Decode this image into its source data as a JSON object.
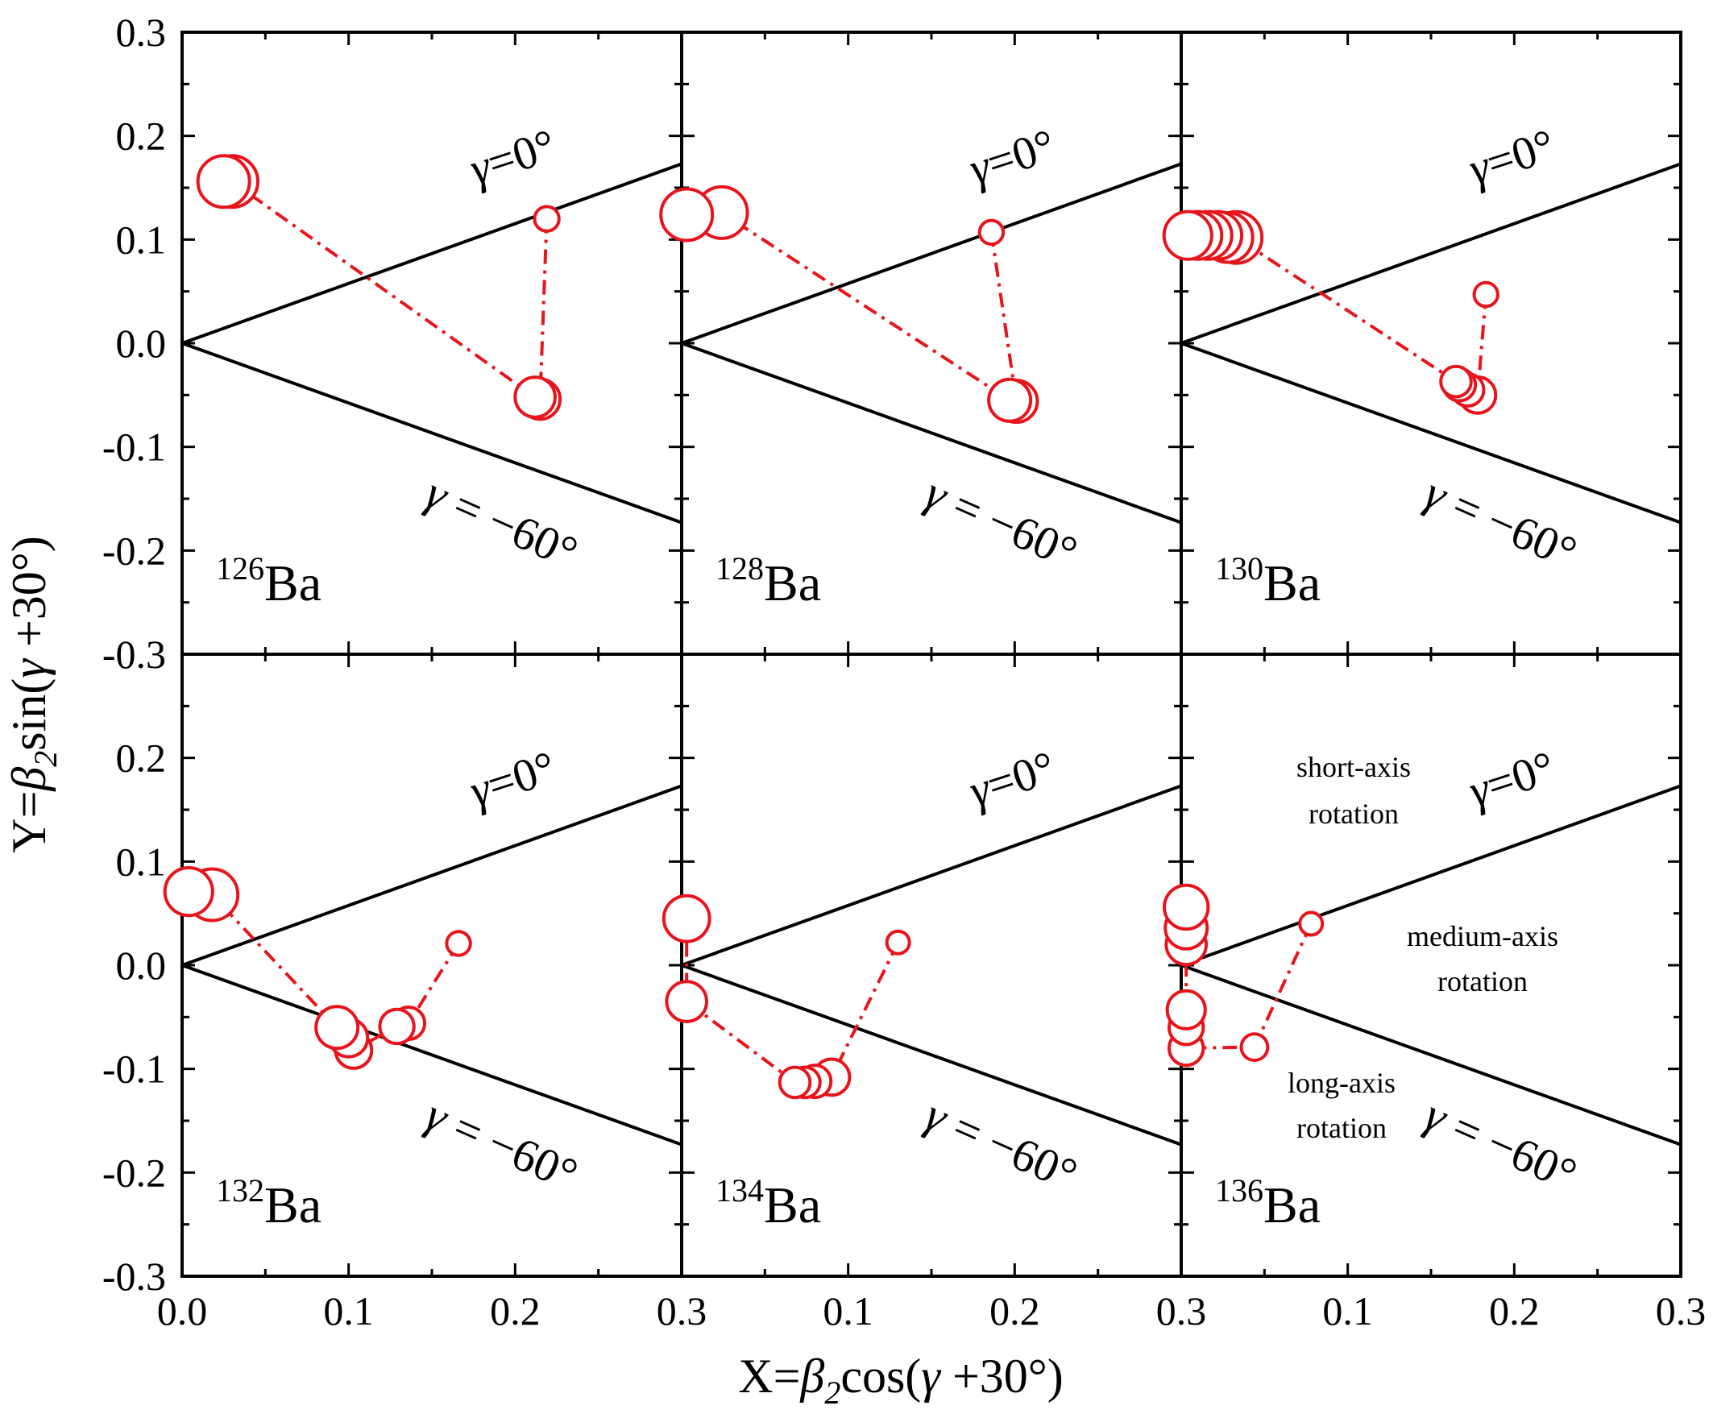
{
  "axes": {
    "x_title": {
      "prefix": "X=",
      "beta": "β",
      "sub": "2",
      "rest": "cos(",
      "gamma": "γ",
      "tail": " +30°)"
    },
    "y_title": {
      "prefix": "Y=",
      "beta": "β",
      "sub": "2",
      "rest": "sin(",
      "gamma": "γ",
      "tail": " +30°)"
    },
    "x_ticks": [
      {
        "value": 0.0,
        "label": "0.0"
      },
      {
        "value": 0.1,
        "label": "0.1"
      },
      {
        "value": 0.2,
        "label": "0.2"
      },
      {
        "value": 0.3,
        "label": "0.3"
      }
    ],
    "x_ticks_inner": [
      {
        "value": 0.1,
        "label": "0.1"
      },
      {
        "value": 0.2,
        "label": "0.2"
      },
      {
        "value": 0.3,
        "label": "0.3"
      }
    ],
    "y_ticks": [
      {
        "value": 0.3,
        "label": "0.3"
      },
      {
        "value": 0.2,
        "label": "0.2"
      },
      {
        "value": 0.1,
        "label": "0.1"
      },
      {
        "value": 0.0,
        "label": "0.0"
      },
      {
        "value": -0.1,
        "label": "-0.1"
      },
      {
        "value": -0.2,
        "label": "-0.2"
      },
      {
        "value": -0.3,
        "label": "-0.3"
      }
    ],
    "y_ticks_bottom": [
      {
        "value": 0.2,
        "label": "0.2"
      },
      {
        "value": 0.1,
        "label": "0.1"
      },
      {
        "value": 0.0,
        "label": "0.0"
      },
      {
        "value": -0.1,
        "label": "-0.1"
      },
      {
        "value": -0.2,
        "label": "-0.2"
      },
      {
        "value": -0.3,
        "label": "-0.3"
      }
    ]
  },
  "gamma_labels": {
    "zero": {
      "gamma": "γ",
      "eq": "=",
      "value": "0°"
    },
    "minus60": {
      "gamma": "γ",
      "eq": "=",
      "value": "−60°"
    }
  },
  "region_labels": {
    "short": [
      "short-axis",
      "rotation"
    ],
    "medium": [
      "medium-axis",
      "rotation"
    ],
    "long": [
      "long-axis",
      "rotation"
    ]
  },
  "colors": {
    "series": "#e8141c",
    "frame": "#000000"
  },
  "chart_data": [
    {
      "type": "scatter",
      "nucleus": {
        "mass": "126",
        "element": "Ba"
      },
      "xlim": [
        0,
        0.3
      ],
      "ylim": [
        -0.3,
        0.3
      ],
      "points": [
        [
          0.219,
          0.12
        ],
        [
          0.215,
          -0.054
        ],
        [
          0.212,
          -0.052
        ],
        [
          0.03,
          0.156
        ],
        [
          0.025,
          0.156
        ]
      ],
      "marker_scale": [
        0.3,
        0.7,
        0.7,
        1.0,
        1.0
      ]
    },
    {
      "type": "scatter",
      "nucleus": {
        "mass": "128",
        "element": "Ba"
      },
      "xlim": [
        0,
        0.3
      ],
      "ylim": [
        -0.3,
        0.3
      ],
      "points": [
        [
          0.186,
          0.107
        ],
        [
          0.201,
          -0.056
        ],
        [
          0.197,
          -0.055
        ],
        [
          0.024,
          0.126
        ],
        [
          0.003,
          0.124
        ]
      ],
      "marker_scale": [
        0.28,
        0.75,
        0.75,
        1.0,
        1.0
      ]
    },
    {
      "type": "scatter",
      "nucleus": {
        "mass": "130",
        "element": "Ba"
      },
      "xlim": [
        0,
        0.3
      ],
      "ylim": [
        -0.3,
        0.3
      ],
      "points": [
        [
          0.183,
          0.047
        ],
        [
          0.178,
          -0.05
        ],
        [
          0.172,
          -0.045
        ],
        [
          0.167,
          -0.04
        ],
        [
          0.165,
          -0.037
        ],
        [
          0.033,
          0.102
        ],
        [
          0.028,
          0.102
        ],
        [
          0.022,
          0.104
        ],
        [
          0.016,
          0.104
        ],
        [
          0.01,
          0.104
        ],
        [
          0.004,
          0.104
        ]
      ],
      "marker_scale": [
        0.28,
        0.6,
        0.5,
        0.5,
        0.45,
        1.0,
        0.95,
        0.9,
        0.9,
        0.9,
        0.9
      ]
    },
    {
      "type": "scatter",
      "nucleus": {
        "mass": "132",
        "element": "Ba"
      },
      "xlim": [
        0,
        0.3
      ],
      "ylim": [
        -0.3,
        0.3
      ],
      "points": [
        [
          0.166,
          0.021
        ],
        [
          0.136,
          -0.056
        ],
        [
          0.129,
          -0.059
        ],
        [
          0.103,
          -0.082
        ],
        [
          0.1,
          -0.07
        ],
        [
          0.093,
          -0.06
        ],
        [
          0.018,
          0.068
        ],
        [
          0.004,
          0.071
        ]
      ],
      "marker_scale": [
        0.28,
        0.5,
        0.55,
        0.6,
        0.65,
        0.75,
        1.0,
        0.9
      ]
    },
    {
      "type": "scatter",
      "nucleus": {
        "mass": "134",
        "element": "Ba"
      },
      "xlim": [
        0,
        0.3
      ],
      "ylim": [
        -0.3,
        0.3
      ],
      "points": [
        [
          0.13,
          0.022
        ],
        [
          0.09,
          -0.108
        ],
        [
          0.08,
          -0.112
        ],
        [
          0.074,
          -0.113
        ],
        [
          0.068,
          -0.113
        ],
        [
          0.003,
          -0.035
        ],
        [
          0.003,
          0.045
        ]
      ],
      "marker_scale": [
        0.25,
        0.6,
        0.5,
        0.45,
        0.45,
        0.7,
        0.85
      ]
    },
    {
      "type": "scatter",
      "nucleus": {
        "mass": "136",
        "element": "Ba"
      },
      "xlim": [
        0,
        0.3
      ],
      "ylim": [
        -0.3,
        0.3
      ],
      "points": [
        [
          0.078,
          0.04
        ],
        [
          0.044,
          -0.079
        ],
        [
          0.003,
          -0.08
        ],
        [
          0.003,
          -0.06
        ],
        [
          0.003,
          -0.043
        ],
        [
          0.003,
          0.02
        ],
        [
          0.003,
          0.036
        ],
        [
          0.003,
          0.056
        ]
      ],
      "marker_scale": [
        0.25,
        0.35,
        0.55,
        0.55,
        0.65,
        0.7,
        0.75,
        0.8
      ]
    }
  ]
}
